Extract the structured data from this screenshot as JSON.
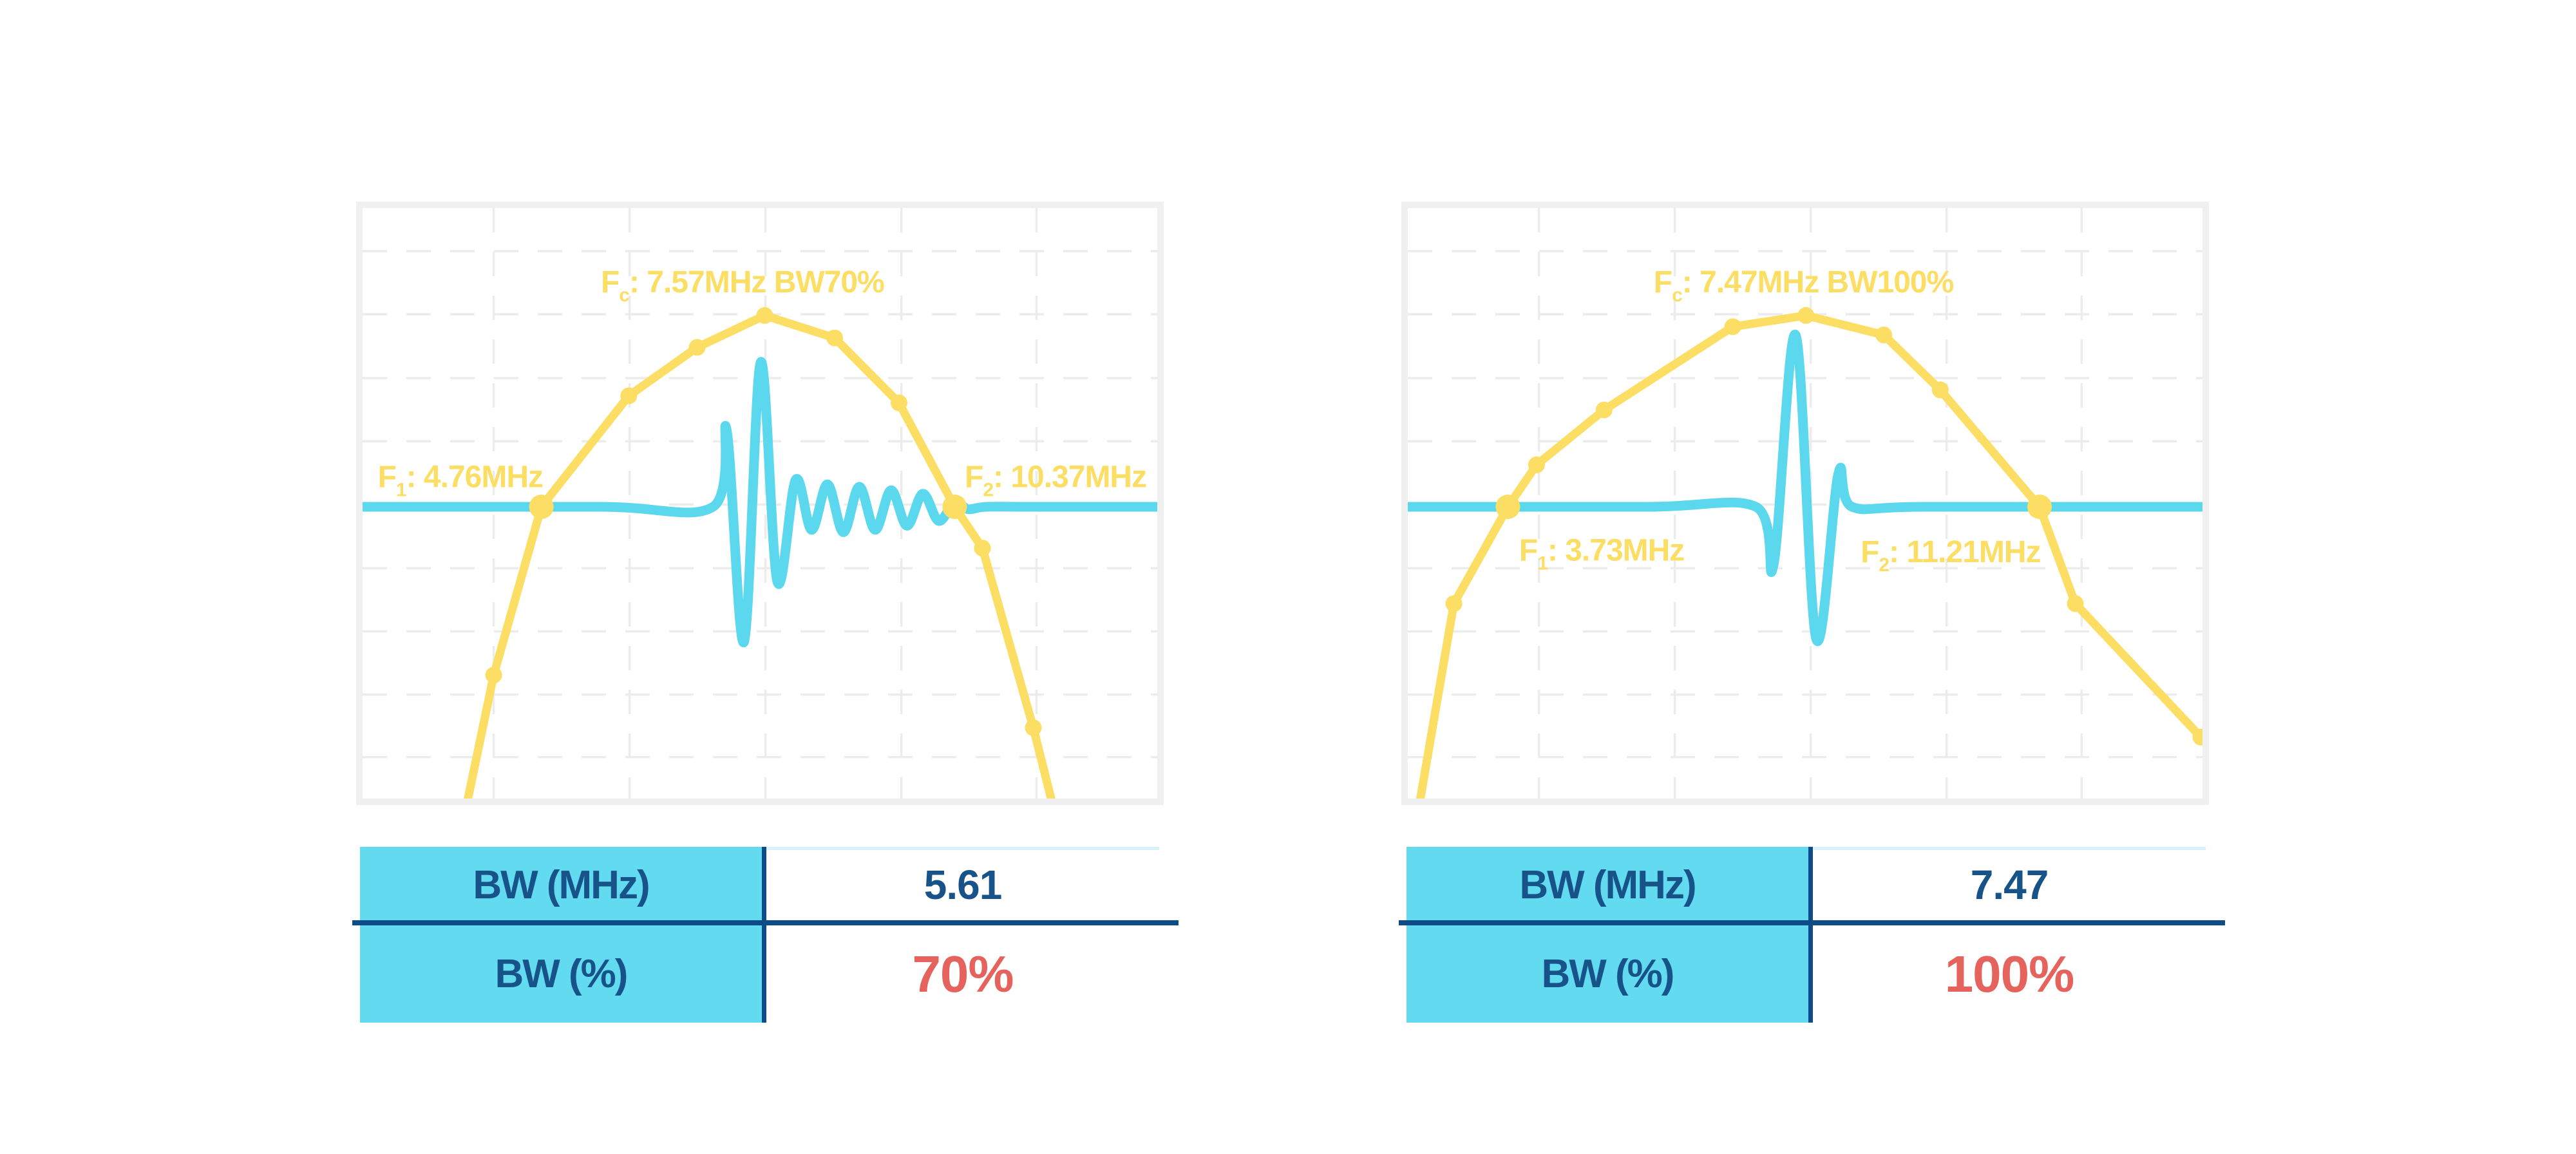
{
  "colors": {
    "yellow": "#FBDE63",
    "cyan": "#5CD8EE",
    "table_header_bg": "#62DBF0",
    "divider_blue": "#0D4C87",
    "label_blue": "#175389",
    "value_red": "#E5635C",
    "panel_border": "#F0F0F0",
    "gridline": "#ECECEC",
    "value_col_top_line": "#D9F2F9"
  },
  "chart_data": [
    {
      "type": "line",
      "name": "pulse-and-spectrum-70pct",
      "annotations": {
        "fc_mhz": 7.57,
        "bw_percent": 70,
        "f1_mhz": 4.76,
        "f2_mhz": 10.37,
        "bw_mhz": 5.61
      },
      "grid": {
        "v": [
          0.165,
          0.336,
          0.507,
          0.678,
          0.848
        ],
        "h": [
          0.073,
          0.18,
          0.288,
          0.395,
          0.502,
          0.61,
          0.717,
          0.824,
          0.93
        ]
      },
      "baseline_y": 0.506,
      "labels": [
        {
          "id": "fc-annotation",
          "prefix": "F",
          "sub": "c",
          "text": ": 7.57MHz BW70%",
          "x": 0.478,
          "y": 0.143
        },
        {
          "id": "f1-annotation",
          "prefix": "F",
          "sub": "1",
          "text": ": 4.76MHz",
          "x": 0.123,
          "y": 0.473
        },
        {
          "id": "f2-annotation",
          "prefix": "F",
          "sub": "2",
          "text": ": 10.37MHz",
          "x": 0.872,
          "y": 0.473
        }
      ],
      "series": [
        {
          "name": "spectrum",
          "color_key": "yellow",
          "points": [
            [
              0.128,
              1.03
            ],
            [
              0.165,
              0.791
            ],
            [
              0.225,
              0.506
            ],
            [
              0.335,
              0.318
            ],
            [
              0.421,
              0.236
            ],
            [
              0.506,
              0.182
            ],
            [
              0.594,
              0.22
            ],
            [
              0.675,
              0.33
            ],
            [
              0.745,
              0.506
            ],
            [
              0.78,
              0.576
            ],
            [
              0.844,
              0.88
            ],
            [
              0.872,
              1.03
            ]
          ],
          "markers": [
            [
              0.165,
              0.791
            ],
            [
              0.335,
              0.318
            ],
            [
              0.421,
              0.236
            ],
            [
              0.506,
              0.182
            ],
            [
              0.594,
              0.22
            ],
            [
              0.675,
              0.33
            ],
            [
              0.78,
              0.576
            ],
            [
              0.844,
              0.88
            ]
          ],
          "big_markers": [
            [
              0.225,
              0.506
            ],
            [
              0.745,
              0.506
            ]
          ]
        },
        {
          "name": "pulse",
          "color_key": "cyan",
          "points": [
            [
              0,
              0.506
            ],
            [
              0.3,
              0.506
            ],
            [
              0.441,
              0.506
            ],
            [
              0.458,
              0.375
            ],
            [
              0.48,
              0.735
            ],
            [
              0.501,
              0.261
            ],
            [
              0.522,
              0.633
            ],
            [
              0.545,
              0.46
            ],
            [
              0.565,
              0.545
            ],
            [
              0.585,
              0.468
            ],
            [
              0.605,
              0.549
            ],
            [
              0.625,
              0.472
            ],
            [
              0.645,
              0.545
            ],
            [
              0.665,
              0.478
            ],
            [
              0.685,
              0.538
            ],
            [
              0.705,
              0.484
            ],
            [
              0.725,
              0.53
            ],
            [
              0.745,
              0.498
            ],
            [
              0.762,
              0.51
            ],
            [
              0.785,
              0.506
            ],
            [
              0.85,
              0.506
            ],
            [
              1.0,
              0.506
            ]
          ]
        }
      ]
    },
    {
      "type": "line",
      "name": "pulse-and-spectrum-100pct",
      "annotations": {
        "fc_mhz": 7.47,
        "bw_percent": 100,
        "f1_mhz": 3.73,
        "f2_mhz": 11.21,
        "bw_mhz": 7.47
      },
      "grid": {
        "v": [
          0.165,
          0.336,
          0.507,
          0.678,
          0.848
        ],
        "h": [
          0.073,
          0.18,
          0.288,
          0.395,
          0.502,
          0.61,
          0.717,
          0.824,
          0.93
        ]
      },
      "baseline_y": 0.506,
      "labels": [
        {
          "id": "fc-annotation",
          "prefix": "F",
          "sub": "c",
          "text": ": 7.47MHz BW100%",
          "x": 0.498,
          "y": 0.143
        },
        {
          "id": "f1-annotation",
          "prefix": "F",
          "sub": "1",
          "text": ": 3.73MHz",
          "x": 0.244,
          "y": 0.597
        },
        {
          "id": "f2-annotation",
          "prefix": "F",
          "sub": "2",
          "text": ": 11.21MHz",
          "x": 0.683,
          "y": 0.6
        }
      ],
      "series": [
        {
          "name": "spectrum",
          "color_key": "yellow",
          "points": [
            [
              0.012,
              1.03
            ],
            [
              0.058,
              0.67
            ],
            [
              0.126,
              0.506
            ],
            [
              0.162,
              0.435
            ],
            [
              0.247,
              0.342
            ],
            [
              0.409,
              0.201
            ],
            [
              0.501,
              0.182
            ],
            [
              0.599,
              0.215
            ],
            [
              0.67,
              0.308
            ],
            [
              0.795,
              0.506
            ],
            [
              0.84,
              0.67
            ],
            [
              0.998,
              0.896
            ]
          ],
          "markers": [
            [
              0.058,
              0.67
            ],
            [
              0.162,
              0.435
            ],
            [
              0.247,
              0.342
            ],
            [
              0.409,
              0.201
            ],
            [
              0.501,
              0.182
            ],
            [
              0.599,
              0.215
            ],
            [
              0.67,
              0.308
            ],
            [
              0.84,
              0.67
            ],
            [
              0.998,
              0.896
            ]
          ],
          "big_markers": [
            [
              0.126,
              0.506
            ],
            [
              0.795,
              0.506
            ]
          ]
        },
        {
          "name": "pulse",
          "color_key": "cyan",
          "points": [
            [
              0,
              0.506
            ],
            [
              0.3,
              0.506
            ],
            [
              0.438,
              0.506
            ],
            [
              0.46,
              0.606
            ],
            [
              0.488,
              0.215
            ],
            [
              0.514,
              0.73
            ],
            [
              0.542,
              0.449
            ],
            [
              0.559,
              0.506
            ],
            [
              0.65,
              0.506
            ],
            [
              1.0,
              0.506
            ]
          ]
        }
      ]
    }
  ],
  "tables": [
    {
      "rows": [
        {
          "label": "BW (MHz)",
          "value": "5.61",
          "highlight": false
        },
        {
          "label": "BW (%)",
          "value": "70%",
          "highlight": true
        }
      ]
    },
    {
      "rows": [
        {
          "label": "BW (MHz)",
          "value": "7.47",
          "highlight": false
        },
        {
          "label": "BW (%)",
          "value": "100%",
          "highlight": true
        }
      ]
    }
  ]
}
